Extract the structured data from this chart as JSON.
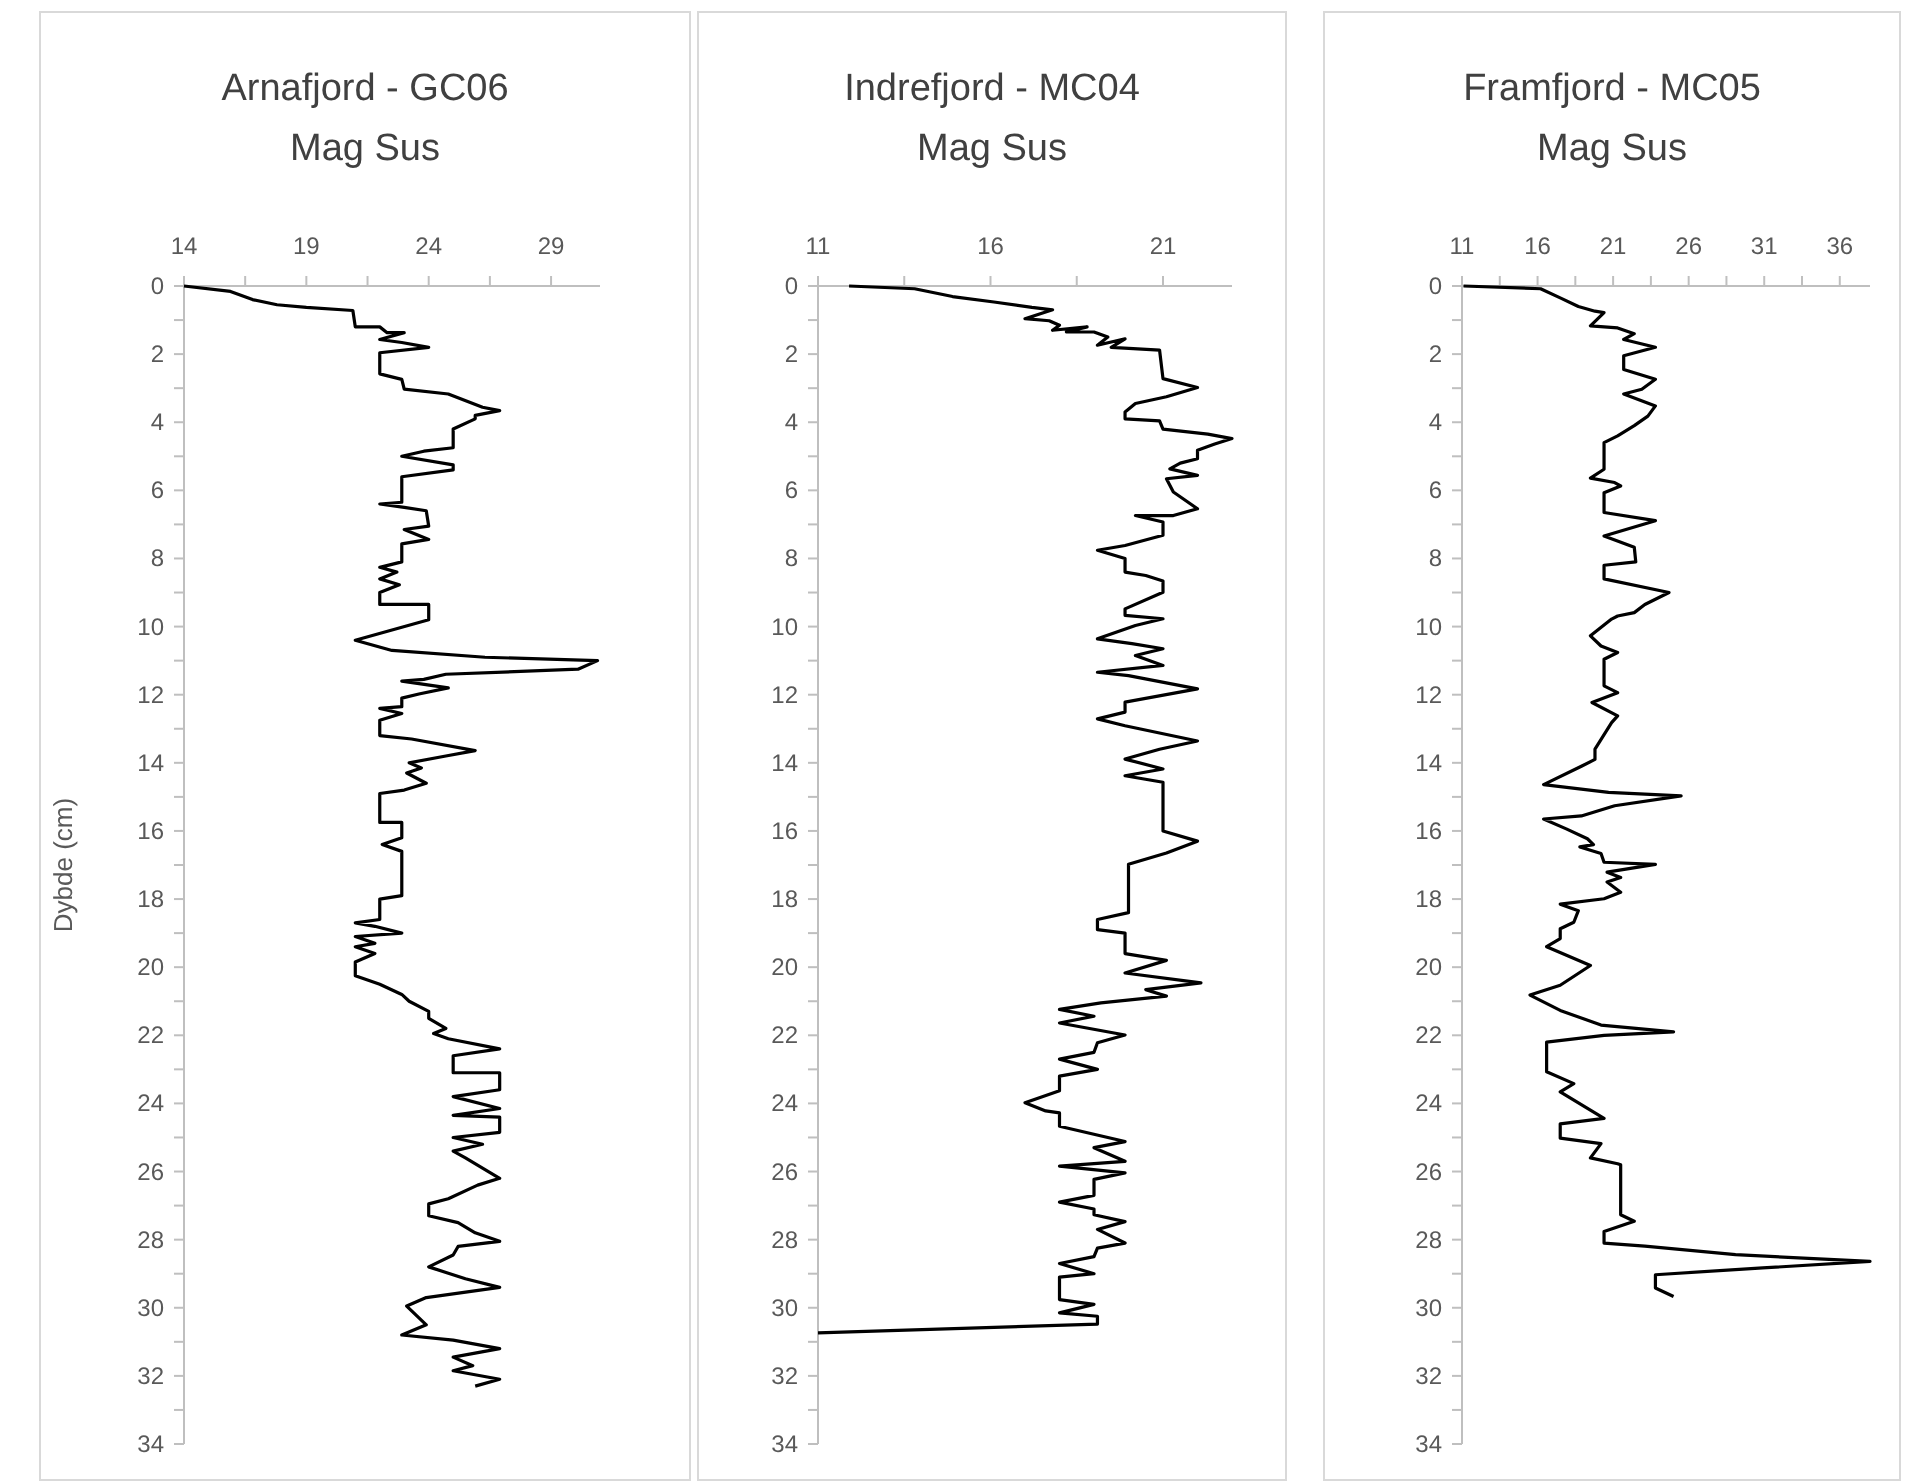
{
  "chart_data": [
    {
      "type": "line",
      "title": "Arnafjord - GC06",
      "subtitle": "Mag Sus",
      "ylabel": "Dybde (cm)",
      "xlim": [
        14,
        31
      ],
      "xticks": [
        14,
        {
          "value": 16.5,
          "label": null
        },
        19,
        {
          "value": 21.5,
          "label": null
        },
        24,
        {
          "value": 26.5,
          "label": null
        },
        29
      ],
      "ylim": [
        34,
        0
      ],
      "yticks": [
        0,
        {
          "value": 1,
          "label": null
        },
        2,
        {
          "value": 3,
          "label": null
        },
        4,
        {
          "value": 5,
          "label": null
        },
        6,
        {
          "value": 7,
          "label": null
        },
        8,
        {
          "value": 9,
          "label": null
        },
        10,
        {
          "value": 11,
          "label": null
        },
        12,
        {
          "value": 13,
          "label": null
        },
        14,
        {
          "value": 15,
          "label": null
        },
        16,
        {
          "value": 17,
          "label": null
        },
        18,
        {
          "value": 19,
          "label": null
        },
        20,
        {
          "value": 21,
          "label": null
        },
        22,
        {
          "value": 23,
          "label": null
        },
        24,
        {
          "value": 25,
          "label": null
        },
        26,
        {
          "value": 27,
          "label": null
        },
        28,
        {
          "value": 29,
          "label": null
        },
        30,
        {
          "value": 31,
          "label": null
        },
        32,
        {
          "value": 33,
          "label": null
        },
        34
      ],
      "line_style": "solid",
      "marker": "none",
      "series": [
        {
          "color": "#000000",
          "x": [
            14,
            15.9,
            16.8,
            17.8,
            19,
            20.9,
            21,
            22,
            22.3,
            23,
            22,
            22.9,
            24,
            22,
            22,
            22.9,
            23,
            24.8,
            26.2,
            26.9,
            25.9,
            25.9,
            25,
            25,
            23.8,
            22.9,
            25,
            25,
            22.9,
            22.9,
            22,
            23,
            23.9,
            24,
            23,
            24,
            22.9,
            22.9,
            22,
            22.7,
            22,
            22.8,
            22,
            22,
            24,
            24,
            21,
            22.5,
            26.3,
            30.9,
            30.1,
            24.7,
            23.8,
            22.9,
            24.8,
            23.6,
            22.9,
            22.9,
            22,
            22.9,
            22,
            22,
            23.3,
            25.9,
            24.7,
            23.2,
            23.7,
            23.1,
            23.9,
            23,
            22,
            22,
            22.9,
            22.9,
            22.1,
            22.9,
            22.9,
            22,
            22,
            21,
            21.8,
            22.9,
            21,
            21.8,
            21,
            21.8,
            21,
            21,
            22,
            22.9,
            23.2,
            24,
            24,
            24.7,
            24.2,
            24.8,
            26.9,
            25,
            25,
            26.9,
            26.9,
            25,
            26.9,
            25,
            26.9,
            26.9,
            25,
            26.2,
            25,
            25.5,
            26.9,
            26,
            24.8,
            24,
            24,
            25.2,
            25.9,
            26.9,
            25.2,
            25,
            24,
            25.5,
            26.9,
            23.9,
            23.1,
            23.9,
            22.9,
            25,
            26.9,
            25,
            25.8,
            25,
            26.9,
            25.9
          ],
          "values": [
            0,
            0.16,
            0.4,
            0.55,
            0.63,
            0.72,
            1.2,
            1.2,
            1.37,
            1.37,
            1.57,
            1.66,
            1.8,
            1.96,
            2.58,
            2.74,
            3.03,
            3.17,
            3.56,
            3.66,
            3.8,
            3.9,
            4.2,
            4.75,
            4.85,
            5,
            5.25,
            5.4,
            5.6,
            6.35,
            6.4,
            6.5,
            6.6,
            7.05,
            7.15,
            7.44,
            7.57,
            8.1,
            8.26,
            8.4,
            8.6,
            8.77,
            9,
            9.35,
            9.35,
            9.8,
            10.4,
            10.7,
            10.9,
            11,
            11.25,
            11.4,
            11.55,
            11.6,
            11.8,
            11.98,
            12.1,
            12.35,
            12.4,
            12.55,
            12.75,
            13.2,
            13.3,
            13.64,
            13.8,
            14,
            14.15,
            14.3,
            14.6,
            14.8,
            14.9,
            15.75,
            15.75,
            16.2,
            16.4,
            16.6,
            17.9,
            18,
            18.6,
            18.7,
            18.8,
            19,
            19.1,
            19.3,
            19.4,
            19.6,
            19.85,
            20.25,
            20.5,
            20.8,
            21,
            21.3,
            21.5,
            21.8,
            21.95,
            22.1,
            22.4,
            22.6,
            23.1,
            23.1,
            23.6,
            23.8,
            24.15,
            24.35,
            24.4,
            24.85,
            25,
            25.2,
            25.4,
            25.6,
            26.2,
            26.4,
            26.8,
            26.95,
            27.3,
            27.5,
            27.8,
            28.05,
            28.2,
            28.45,
            28.8,
            29.15,
            29.4,
            29.7,
            29.95,
            30.5,
            30.8,
            30.95,
            31.2,
            31.45,
            31.7,
            31.85,
            32.1,
            32.3
          ]
        }
      ]
    },
    {
      "type": "line",
      "title": "Indrefjord - MC04",
      "subtitle": "Mag Sus",
      "xlim": [
        11,
        23
      ],
      "xticks": [
        11,
        {
          "value": 13.5,
          "label": null
        },
        16,
        {
          "value": 18.5,
          "label": null
        },
        21
      ],
      "ylim": [
        34,
        0
      ],
      "yticks": [
        0,
        {
          "value": 1,
          "label": null
        },
        2,
        {
          "value": 3,
          "label": null
        },
        4,
        {
          "value": 5,
          "label": null
        },
        6,
        {
          "value": 7,
          "label": null
        },
        8,
        {
          "value": 9,
          "label": null
        },
        10,
        {
          "value": 11,
          "label": null
        },
        12,
        {
          "value": 13,
          "label": null
        },
        14,
        {
          "value": 15,
          "label": null
        },
        16,
        {
          "value": 17,
          "label": null
        },
        18,
        {
          "value": 19,
          "label": null
        },
        20,
        {
          "value": 21,
          "label": null
        },
        22,
        {
          "value": 23,
          "label": null
        },
        24,
        {
          "value": 25,
          "label": null
        },
        26,
        {
          "value": 27,
          "label": null
        },
        28,
        {
          "value": 29,
          "label": null
        },
        30,
        {
          "value": 31,
          "label": null
        },
        32,
        {
          "value": 33,
          "label": null
        },
        34
      ],
      "line_style": "solid",
      "marker": "none",
      "series": [
        {
          "color": "#000000",
          "x": [
            11.9,
            13.8,
            14.9,
            16.1,
            17.2,
            17.8,
            17,
            17.7,
            18,
            17.8,
            18.8,
            18.2,
            19,
            19.4,
            19.1,
            19.9,
            19.5,
            20.9,
            21,
            22,
            21.1,
            20.2,
            19.9,
            19.9,
            20.9,
            21,
            22.3,
            23,
            22.5,
            22,
            22,
            21.5,
            21.2,
            22,
            21.1,
            21.3,
            22,
            21.3,
            20.2,
            21,
            21,
            19.9,
            19.1,
            19.9,
            19.9,
            20.5,
            21,
            21,
            19.9,
            19.9,
            21,
            20.2,
            19.1,
            20.1,
            21,
            20.2,
            21,
            19.1,
            20,
            22,
            19.9,
            19.9,
            19.1,
            19.9,
            22,
            20.9,
            19.9,
            21,
            19.9,
            21,
            21,
            22,
            21.1,
            20,
            20,
            19.1,
            19.1,
            19.9,
            19.9,
            21.1,
            19.9,
            22.1,
            20.5,
            21.1,
            19.2,
            18,
            19,
            18,
            19.9,
            19.1,
            19,
            18,
            19.1,
            18,
            18,
            17,
            17.6,
            18,
            18,
            19.9,
            19,
            19.9,
            18,
            19.9,
            19,
            19,
            18,
            19,
            19,
            19.9,
            19.1,
            19.9,
            19.1,
            19,
            18,
            19,
            18,
            18,
            19,
            18,
            19.1,
            19.1,
            11
          ],
          "values": [
            0,
            0.08,
            0.31,
            0.47,
            0.63,
            0.7,
            0.96,
            1.02,
            1.15,
            1.3,
            1.2,
            1.35,
            1.35,
            1.5,
            1.74,
            1.55,
            1.8,
            1.88,
            2.72,
            2.98,
            3.25,
            3.45,
            3.7,
            3.9,
            3.96,
            4.2,
            4.35,
            4.48,
            4.64,
            4.82,
            5.07,
            5.2,
            5.37,
            5.56,
            5.66,
            6.05,
            6.54,
            6.74,
            6.74,
            6.93,
            7.32,
            7.62,
            7.76,
            8,
            8.4,
            8.5,
            8.66,
            8.99,
            9.48,
            9.67,
            9.77,
            9.97,
            10.36,
            10.5,
            10.65,
            10.85,
            11.14,
            11.34,
            11.44,
            11.83,
            12.22,
            12.51,
            12.71,
            12.91,
            13.36,
            13.6,
            13.89,
            14.18,
            14.38,
            14.57,
            16,
            16.3,
            16.65,
            16.98,
            18.4,
            18.6,
            18.9,
            19,
            19.6,
            19.8,
            20.17,
            20.46,
            20.66,
            20.85,
            21.05,
            21.24,
            21.44,
            21.64,
            21.99,
            22.22,
            22.5,
            22.7,
            23,
            23.2,
            23.63,
            23.98,
            24.22,
            24.28,
            24.67,
            25.12,
            25.3,
            25.7,
            25.84,
            26.04,
            26.23,
            26.7,
            26.9,
            27.1,
            27.27,
            27.47,
            27.7,
            28.1,
            28.25,
            28.5,
            28.7,
            29,
            29.1,
            29.76,
            29.9,
            30.15,
            30.25,
            30.48,
            30.74
          ]
        }
      ]
    },
    {
      "type": "line",
      "title": "Framfjord - MC05",
      "subtitle": "Mag Sus",
      "xlim": [
        11,
        38
      ],
      "xticks": [
        11,
        {
          "value": 13.5,
          "label": null
        },
        16,
        {
          "value": 18.5,
          "label": null
        },
        21,
        {
          "value": 23.5,
          "label": null
        },
        26,
        {
          "value": 28.5,
          "label": null
        },
        31,
        {
          "value": 33.5,
          "label": null
        },
        36
      ],
      "ylim": [
        34,
        0
      ],
      "yticks": [
        0,
        {
          "value": 1,
          "label": null
        },
        2,
        {
          "value": 3,
          "label": null
        },
        4,
        {
          "value": 5,
          "label": null
        },
        6,
        {
          "value": 7,
          "label": null
        },
        8,
        {
          "value": 9,
          "label": null
        },
        10,
        {
          "value": 11,
          "label": null
        },
        12,
        {
          "value": 13,
          "label": null
        },
        14,
        {
          "value": 15,
          "label": null
        },
        16,
        {
          "value": 17,
          "label": null
        },
        18,
        {
          "value": 19,
          "label": null
        },
        20,
        {
          "value": 21,
          "label": null
        },
        22,
        {
          "value": 23,
          "label": null
        },
        24,
        {
          "value": 25,
          "label": null
        },
        26,
        {
          "value": 27,
          "label": null
        },
        28,
        {
          "value": 29,
          "label": null
        },
        30,
        {
          "value": 31,
          "label": null
        },
        32,
        {
          "value": 33,
          "label": null
        },
        34
      ],
      "line_style": "solid",
      "marker": "none",
      "series": [
        {
          "color": "#000000",
          "x": [
            11.1,
            16.2,
            17.5,
            18.7,
            19.8,
            20.4,
            19.5,
            21.3,
            22.4,
            21.7,
            23.8,
            21.7,
            21.7,
            23.8,
            22.9,
            21.7,
            23.8,
            23.3,
            22.4,
            21.3,
            20.4,
            20.4,
            19.5,
            21.1,
            21.5,
            20.4,
            20.4,
            23.8,
            20.4,
            22.4,
            22.5,
            20.4,
            20.4,
            24.7,
            23.1,
            22.4,
            21.3,
            20.9,
            19.5,
            20.2,
            21.3,
            20.4,
            20.4,
            21.3,
            19.6,
            21.3,
            20.9,
            19.8,
            19.8,
            18.9,
            16.4,
            20.7,
            25.5,
            21.1,
            18.9,
            16.4,
            17.9,
            19.3,
            19.7,
            18.8,
            20.2,
            20.4,
            23.8,
            20.6,
            21.5,
            20.6,
            21.5,
            20.4,
            17.5,
            18.7,
            18.4,
            17.5,
            17.5,
            16.6,
            19.5,
            17.5,
            15.5,
            17.5,
            20.2,
            25,
            20.4,
            16.6,
            16.6,
            18.4,
            17.5,
            20.4,
            17.5,
            17.5,
            20.2,
            19.5,
            21.3,
            21.5,
            21.5,
            22.4,
            20.4,
            20.4,
            23.1,
            29.1,
            38,
            30.9,
            23.8,
            23.8,
            25
          ],
          "values": [
            0,
            0.08,
            0.35,
            0.6,
            0.74,
            0.78,
            1.17,
            1.23,
            1.4,
            1.57,
            1.8,
            2.05,
            2.45,
            2.74,
            3.03,
            3.17,
            3.52,
            3.82,
            4.1,
            4.4,
            4.6,
            5.38,
            5.64,
            5.77,
            5.87,
            6.07,
            6.65,
            6.89,
            7.34,
            7.67,
            8.1,
            8.2,
            8.6,
            9,
            9.35,
            9.59,
            9.69,
            9.78,
            10.27,
            10.57,
            10.76,
            10.96,
            11.74,
            11.94,
            12.23,
            12.62,
            12.82,
            13.6,
            13.9,
            14.1,
            14.64,
            14.87,
            14.97,
            15.26,
            15.56,
            15.65,
            15.94,
            16.23,
            16.4,
            16.47,
            16.66,
            16.92,
            16.98,
            17.21,
            17.37,
            17.5,
            17.8,
            17.99,
            18.15,
            18.34,
            18.68,
            18.87,
            19.16,
            19.4,
            19.95,
            20.53,
            20.82,
            21.27,
            21.7,
            21.9,
            22,
            22.2,
            23.07,
            23.42,
            23.66,
            24.44,
            24.6,
            25.02,
            25.18,
            25.6,
            25.77,
            25.8,
            27.27,
            27.46,
            27.76,
            28.1,
            28.19,
            28.44,
            28.64,
            28.83,
            29.03,
            29.42,
            29.67
          ]
        }
      ]
    }
  ]
}
